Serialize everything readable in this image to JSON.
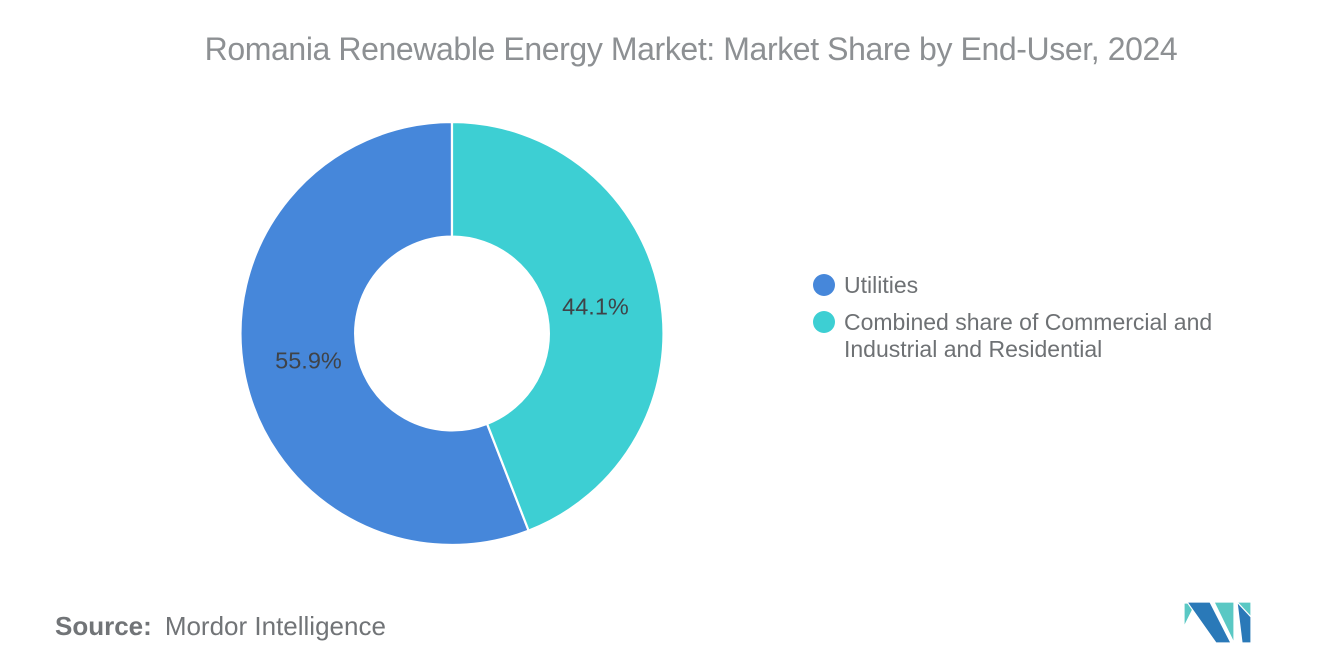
{
  "page": {
    "background": "#ffffff"
  },
  "chart_data": {
    "type": "pie",
    "subtype": "donut",
    "title": "Romania Renewable Energy Market: Market Share by End-User, 2024",
    "start_angle_deg": 0,
    "direction": "counterclockwise",
    "inner_radius_ratio": 0.458,
    "slices": [
      {
        "label": "Utilities",
        "value": 55.9,
        "display": "55.9%",
        "color": "#4687da"
      },
      {
        "label": "Combined share of Commercial and Industrial and Residential",
        "value": 44.1,
        "display": "44.1%",
        "color": "#3dcfd3"
      }
    ],
    "value_label_color": "#3f4348",
    "legend_position": "right",
    "grid": false
  },
  "legend": {
    "text_color": "#6e7174"
  },
  "source": {
    "label": "Source:",
    "value": "Mordor Intelligence",
    "color": "#717477"
  },
  "logo": {
    "name": "mordor-intelligence-logo",
    "blue": "#2a79b8",
    "teal": "#5ac8c4"
  }
}
